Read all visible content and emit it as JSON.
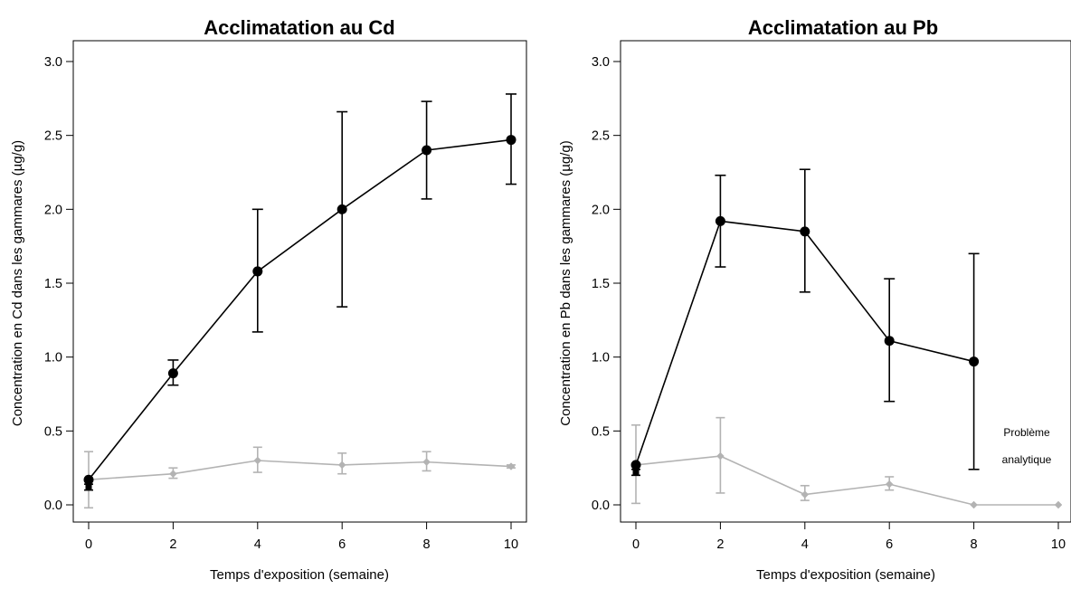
{
  "chart_data": [
    {
      "type": "line",
      "title": "Acclimatation au Cd",
      "xlabel": "Temps d'exposition (semaine)",
      "ylabel": "Concentration en Cd dans les gammares (µg/g)",
      "xlim": [
        0,
        10
      ],
      "ylim": [
        0,
        3.0
      ],
      "xticks": [
        "0",
        "2",
        "4",
        "6",
        "8",
        "10"
      ],
      "yticks": [
        "0.0",
        "0.5",
        "1.0",
        "1.5",
        "2.0",
        "2.5",
        "3.0"
      ],
      "grid": false,
      "color_exposed": "#000000",
      "color_control": "#b3b3b3",
      "series": [
        {
          "role": "exposed",
          "x": [
            0,
            2,
            4,
            6,
            8,
            10
          ],
          "y": [
            0.17,
            0.89,
            1.58,
            2.0,
            2.4,
            2.47
          ],
          "err_low": [
            0.17,
            0.81,
            1.17,
            1.34,
            2.07,
            2.17
          ],
          "err_high": [
            0.17,
            0.98,
            2.0,
            2.66,
            2.73,
            2.78
          ]
        },
        {
          "role": "control",
          "x": [
            0,
            2,
            4,
            6,
            8,
            10
          ],
          "y": [
            0.17,
            0.21,
            0.3,
            0.27,
            0.29,
            0.26
          ],
          "err_low": [
            -0.02,
            0.18,
            0.22,
            0.21,
            0.23,
            0.25
          ],
          "err_high": [
            0.36,
            0.25,
            0.39,
            0.35,
            0.36,
            0.27
          ]
        }
      ],
      "initial_point": {
        "x": 0,
        "y": 0.12,
        "err_low": 0.1,
        "err_high": 0.14
      },
      "annotations": []
    },
    {
      "type": "line",
      "title": "Acclimatation au Pb",
      "xlabel": "Temps d'exposition (semaine)",
      "ylabel": "Concentration en Pb dans les gammares (µg/g)",
      "xlim": [
        0,
        10
      ],
      "ylim": [
        0,
        3.0
      ],
      "xticks": [
        "0",
        "2",
        "4",
        "6",
        "8",
        "10"
      ],
      "yticks": [
        "0.0",
        "0.5",
        "1.0",
        "1.5",
        "2.0",
        "2.5",
        "3.0"
      ],
      "grid": false,
      "color_exposed": "#000000",
      "color_control": "#b3b3b3",
      "series": [
        {
          "role": "exposed",
          "x": [
            0,
            2,
            4,
            6,
            8
          ],
          "y": [
            0.27,
            1.92,
            1.85,
            1.11,
            0.97
          ],
          "err_low": [
            0.27,
            1.61,
            1.44,
            0.7,
            0.24
          ],
          "err_high": [
            0.27,
            2.23,
            2.27,
            1.53,
            1.7
          ]
        },
        {
          "role": "control",
          "x": [
            0,
            2,
            4,
            6,
            8,
            10
          ],
          "y": [
            0.27,
            0.33,
            0.07,
            0.14,
            0.0,
            0.0
          ],
          "err_low": [
            0.01,
            0.08,
            0.03,
            0.1,
            0.0,
            0.0
          ],
          "err_high": [
            0.54,
            0.59,
            0.13,
            0.19,
            0.0,
            0.0
          ]
        }
      ],
      "initial_point": {
        "x": 0,
        "y": 0.22,
        "err_low": 0.2,
        "err_high": 0.24
      },
      "annotations": [
        "Problème",
        "analytique"
      ]
    }
  ]
}
